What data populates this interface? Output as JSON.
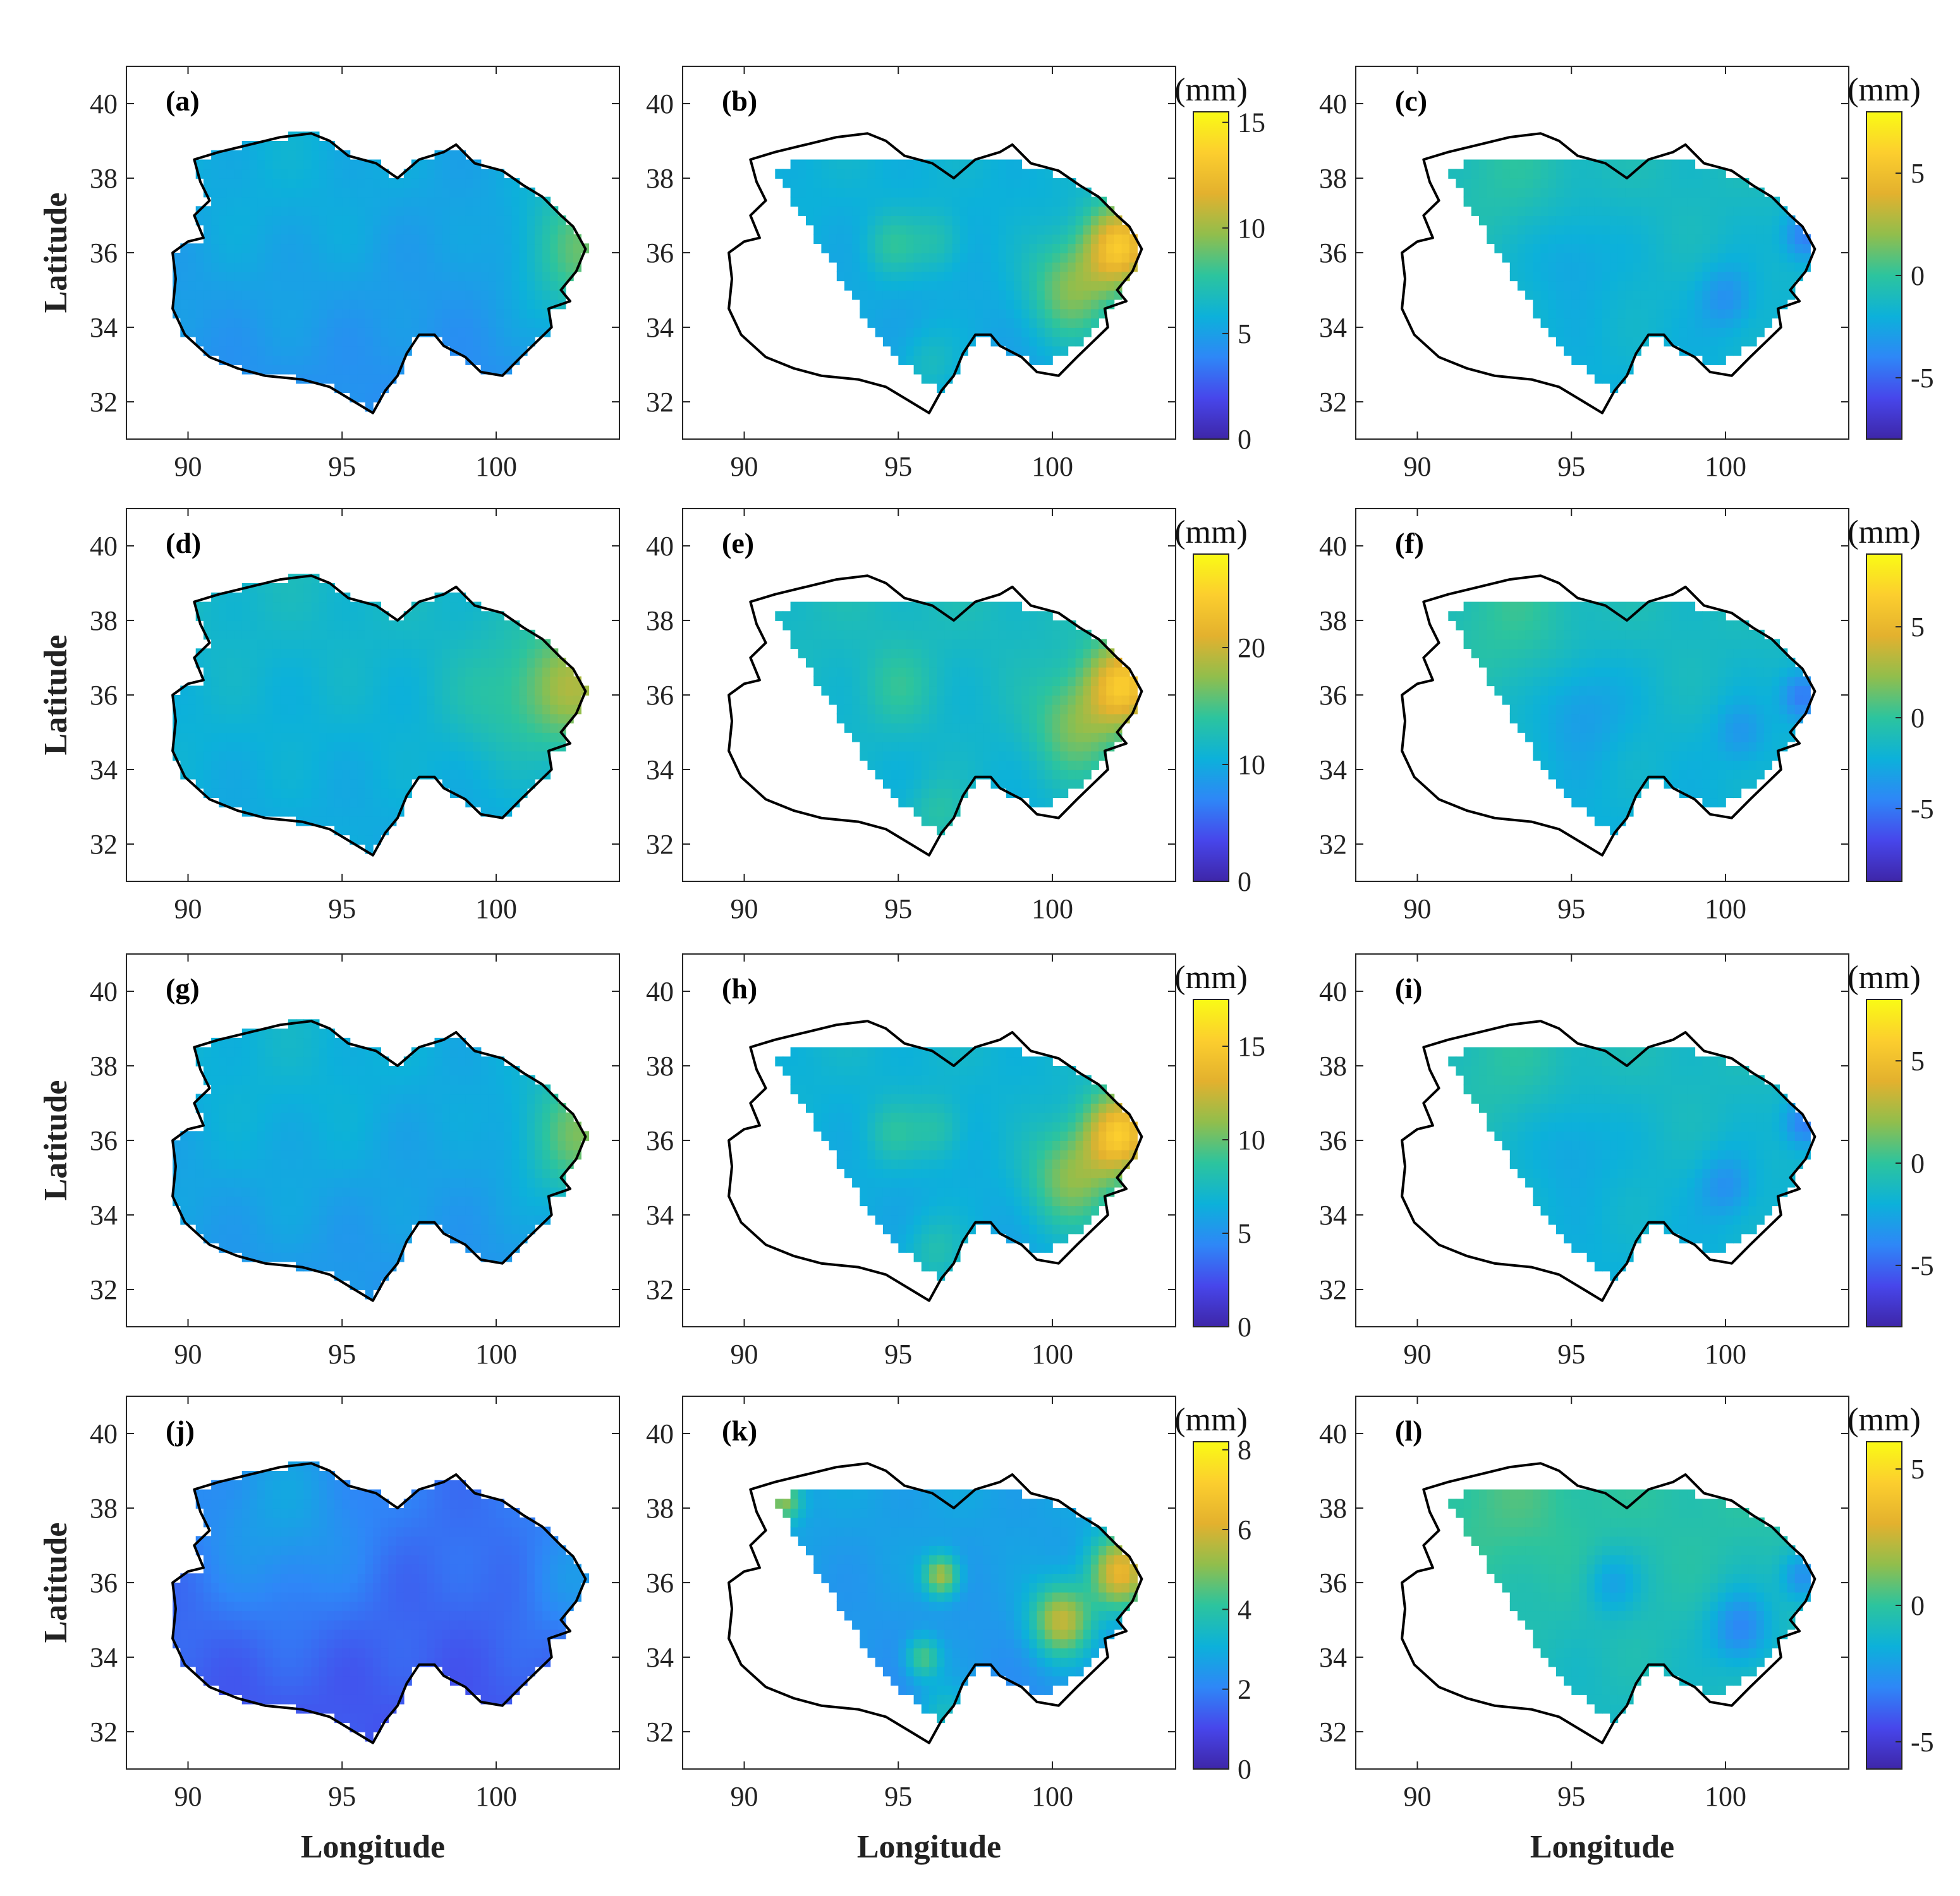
{
  "figure": {
    "xlabel": "Longitude",
    "ylabel": "Latitude",
    "colormap": [
      "#3e26a8",
      "#4746eb",
      "#2e87f7",
      "#0cb1da",
      "#2cc49e",
      "#91be4c",
      "#e3b12e",
      "#fcce2e",
      "#f9fb15"
    ]
  },
  "chart_data": [
    {
      "label": "(a)",
      "type": "heatmap",
      "extent": "full",
      "xticks": [
        "90",
        "95",
        "100"
      ],
      "yticks": [
        "32",
        "34",
        "36",
        "38",
        "40"
      ],
      "xlim": [
        88,
        104
      ],
      "ylim": [
        31,
        41
      ],
      "colorbar": false,
      "range": [
        0,
        15
      ],
      "base": 0.3,
      "spots": [
        {
          "lon": 103,
          "lat": 36,
          "amp": 0.25,
          "r": 1.5
        },
        {
          "lon": 93,
          "lat": 37.5,
          "amp": 0.04,
          "r": 3
        }
      ]
    },
    {
      "label": "(b)",
      "type": "heatmap",
      "extent": "partial",
      "xticks": [
        "90",
        "95",
        "100"
      ],
      "yticks": [
        "32",
        "34",
        "36",
        "38",
        "40"
      ],
      "xlim": [
        88,
        104
      ],
      "ylim": [
        31,
        41
      ],
      "colorbar": true,
      "cb_unit": "(mm)",
      "cb_ticks": [
        "0",
        "5",
        "10",
        "15"
      ],
      "range": [
        0,
        15.5
      ],
      "base": 0.35,
      "spots": [
        {
          "lon": 102.2,
          "lat": 36.2,
          "amp": 0.45,
          "r": 0.8
        },
        {
          "lon": 100.6,
          "lat": 35,
          "amp": 0.25,
          "r": 1
        },
        {
          "lon": 94.8,
          "lat": 36.2,
          "amp": 0.12,
          "r": 0.6
        },
        {
          "lon": 96.3,
          "lat": 36.3,
          "amp": 0.1,
          "r": 0.6
        },
        {
          "lon": 96,
          "lat": 33,
          "amp": 0.1,
          "r": 0.7
        }
      ]
    },
    {
      "label": "(c)",
      "type": "heatmap",
      "extent": "partial",
      "xticks": [
        "90",
        "95",
        "100"
      ],
      "yticks": [
        "32",
        "34",
        "36",
        "38",
        "40"
      ],
      "xlim": [
        88,
        104
      ],
      "ylim": [
        31,
        41
      ],
      "colorbar": true,
      "cb_unit": "(mm)",
      "cb_ticks": [
        "5",
        "0",
        "-5"
      ],
      "cb_tick_values": [
        5,
        0,
        -5
      ],
      "range": [
        -8,
        8
      ],
      "base": 0.4,
      "spots": [
        {
          "lon": 95,
          "lat": 36,
          "amp": -0.08,
          "r": 1
        },
        {
          "lon": 102.6,
          "lat": 36.5,
          "amp": -0.2,
          "r": 0.5
        },
        {
          "lon": 100,
          "lat": 34.8,
          "amp": -0.12,
          "r": 0.6
        },
        {
          "lon": 93,
          "lat": 37.8,
          "amp": 0.05,
          "r": 1.5
        }
      ]
    },
    {
      "label": "(d)",
      "type": "heatmap",
      "extent": "full",
      "xticks": [
        "90",
        "95",
        "100"
      ],
      "yticks": [
        "32",
        "34",
        "36",
        "38",
        "40"
      ],
      "xlim": [
        88,
        104
      ],
      "ylim": [
        31,
        41
      ],
      "colorbar": false,
      "range": [
        0,
        30
      ],
      "base": 0.38,
      "spots": [
        {
          "lon": 102.5,
          "lat": 36.2,
          "amp": 0.25,
          "r": 1.2
        },
        {
          "lon": 100,
          "lat": 35.8,
          "amp": 0.08,
          "r": 1.2
        }
      ]
    },
    {
      "label": "(e)",
      "type": "heatmap",
      "extent": "partial",
      "xticks": [
        "90",
        "95",
        "100"
      ],
      "yticks": [
        "32",
        "34",
        "36",
        "38",
        "40"
      ],
      "xlim": [
        88,
        104
      ],
      "ylim": [
        31,
        41
      ],
      "colorbar": true,
      "cb_unit": "(mm)",
      "cb_ticks": [
        "0",
        "10",
        "20"
      ],
      "range": [
        0,
        28
      ],
      "base": 0.4,
      "spots": [
        {
          "lon": 102.3,
          "lat": 36.3,
          "amp": 0.4,
          "r": 0.8
        },
        {
          "lon": 100.8,
          "lat": 35.2,
          "amp": 0.2,
          "r": 1
        },
        {
          "lon": 95,
          "lat": 36.2,
          "amp": 0.08,
          "r": 0.8
        },
        {
          "lon": 96.3,
          "lat": 32.8,
          "amp": 0.1,
          "r": 0.7
        }
      ]
    },
    {
      "label": "(f)",
      "type": "heatmap",
      "extent": "partial",
      "xticks": [
        "90",
        "95",
        "100"
      ],
      "yticks": [
        "32",
        "34",
        "36",
        "38",
        "40"
      ],
      "xlim": [
        88,
        104
      ],
      "ylim": [
        31,
        41
      ],
      "colorbar": true,
      "cb_unit": "(mm)",
      "cb_ticks": [
        "5",
        "0",
        "-5"
      ],
      "cb_tick_values": [
        5,
        0,
        -5
      ],
      "range": [
        -9,
        9
      ],
      "base": 0.4,
      "spots": [
        {
          "lon": 95.3,
          "lat": 35.7,
          "amp": -0.1,
          "r": 1
        },
        {
          "lon": 102.5,
          "lat": 36,
          "amp": -0.2,
          "r": 0.5
        },
        {
          "lon": 100.5,
          "lat": 35,
          "amp": -0.1,
          "r": 0.6
        },
        {
          "lon": 93,
          "lat": 37.8,
          "amp": 0.07,
          "r": 1.5
        }
      ]
    },
    {
      "label": "(g)",
      "type": "heatmap",
      "extent": "full",
      "xticks": [
        "90",
        "95",
        "100"
      ],
      "yticks": [
        "32",
        "34",
        "36",
        "38",
        "40"
      ],
      "xlim": [
        88,
        104
      ],
      "ylim": [
        31,
        41
      ],
      "colorbar": false,
      "range": [
        0,
        17
      ],
      "base": 0.32,
      "spots": [
        {
          "lon": 102.8,
          "lat": 36.1,
          "amp": 0.25,
          "r": 1.3
        },
        {
          "lon": 93,
          "lat": 37.5,
          "amp": 0.04,
          "r": 3
        }
      ]
    },
    {
      "label": "(h)",
      "type": "heatmap",
      "extent": "partial",
      "xticks": [
        "90",
        "95",
        "100"
      ],
      "yticks": [
        "32",
        "34",
        "36",
        "38",
        "40"
      ],
      "xlim": [
        88,
        104
      ],
      "ylim": [
        31,
        41
      ],
      "colorbar": true,
      "cb_unit": "(mm)",
      "cb_ticks": [
        "0",
        "5",
        "10",
        "15"
      ],
      "range": [
        0,
        17.5
      ],
      "base": 0.36,
      "spots": [
        {
          "lon": 102.2,
          "lat": 36.2,
          "amp": 0.45,
          "r": 0.8
        },
        {
          "lon": 100.6,
          "lat": 35,
          "amp": 0.25,
          "r": 1
        },
        {
          "lon": 94.8,
          "lat": 36.2,
          "amp": 0.1,
          "r": 0.6
        },
        {
          "lon": 96.3,
          "lat": 36.3,
          "amp": 0.1,
          "r": 0.6
        },
        {
          "lon": 96.2,
          "lat": 33,
          "amp": 0.12,
          "r": 0.7
        }
      ]
    },
    {
      "label": "(i)",
      "type": "heatmap",
      "extent": "partial",
      "xticks": [
        "90",
        "95",
        "100"
      ],
      "yticks": [
        "32",
        "34",
        "36",
        "38",
        "40"
      ],
      "xlim": [
        88,
        104
      ],
      "ylim": [
        31,
        41
      ],
      "colorbar": true,
      "cb_unit": "(mm)",
      "cb_ticks": [
        "5",
        "0",
        "-5"
      ],
      "cb_tick_values": [
        5,
        0,
        -5
      ],
      "range": [
        -8,
        8
      ],
      "base": 0.4,
      "spots": [
        {
          "lon": 95,
          "lat": 36,
          "amp": -0.08,
          "r": 1
        },
        {
          "lon": 102.6,
          "lat": 36.5,
          "amp": -0.2,
          "r": 0.5
        },
        {
          "lon": 100,
          "lat": 34.8,
          "amp": -0.12,
          "r": 0.6
        },
        {
          "lon": 93,
          "lat": 37.8,
          "amp": 0.05,
          "r": 1.5
        }
      ]
    },
    {
      "label": "(j)",
      "type": "heatmap",
      "extent": "full",
      "xticks": [
        "90",
        "95",
        "100"
      ],
      "yticks": [
        "32",
        "34",
        "36",
        "38",
        "40"
      ],
      "xlim": [
        88,
        104
      ],
      "ylim": [
        31,
        41
      ],
      "colorbar": false,
      "range": [
        0,
        8
      ],
      "base": 0.18,
      "spots": [
        {
          "lon": 93,
          "lat": 37.8,
          "amp": 0.12,
          "r": 2
        },
        {
          "lon": 102.5,
          "lat": 36,
          "amp": 0.1,
          "r": 1.2
        }
      ]
    },
    {
      "label": "(k)",
      "type": "heatmap",
      "extent": "partial",
      "xticks": [
        "90",
        "95",
        "100"
      ],
      "yticks": [
        "32",
        "34",
        "36",
        "38",
        "40"
      ],
      "xlim": [
        88,
        104
      ],
      "ylim": [
        31,
        41
      ],
      "colorbar": true,
      "cb_unit": "(mm)",
      "cb_ticks": [
        "0",
        "2",
        "4",
        "6",
        "8"
      ],
      "range": [
        0,
        8.2
      ],
      "base": 0.3,
      "spots": [
        {
          "lon": 102.2,
          "lat": 36.3,
          "amp": 0.45,
          "r": 0.7
        },
        {
          "lon": 100.3,
          "lat": 35,
          "amp": 0.4,
          "r": 0.7
        },
        {
          "lon": 96.4,
          "lat": 36.2,
          "amp": 0.35,
          "r": 0.4
        },
        {
          "lon": 95.8,
          "lat": 34,
          "amp": 0.25,
          "r": 0.4
        },
        {
          "lon": 91.3,
          "lat": 38.2,
          "amp": 0.3,
          "r": 0.4
        },
        {
          "lon": 96.5,
          "lat": 32.5,
          "amp": 0.15,
          "r": 0.6
        }
      ]
    },
    {
      "label": "(l)",
      "type": "heatmap",
      "extent": "partial",
      "xticks": [
        "90",
        "95",
        "100"
      ],
      "yticks": [
        "32",
        "34",
        "36",
        "38",
        "40"
      ],
      "xlim": [
        88,
        104
      ],
      "ylim": [
        31,
        41
      ],
      "colorbar": true,
      "cb_unit": "(mm)",
      "cb_ticks": [
        "5",
        "0",
        "-5"
      ],
      "cb_tick_values": [
        5,
        0,
        -5
      ],
      "range": [
        -6,
        6
      ],
      "base": 0.45,
      "spots": [
        {
          "lon": 96.3,
          "lat": 36,
          "amp": -0.12,
          "r": 0.6
        },
        {
          "lon": 100.5,
          "lat": 34.8,
          "amp": -0.2,
          "r": 0.7
        },
        {
          "lon": 102.5,
          "lat": 36.2,
          "amp": -0.2,
          "r": 0.5
        },
        {
          "lon": 93,
          "lat": 37.8,
          "amp": 0.05,
          "r": 1.5
        }
      ]
    }
  ]
}
